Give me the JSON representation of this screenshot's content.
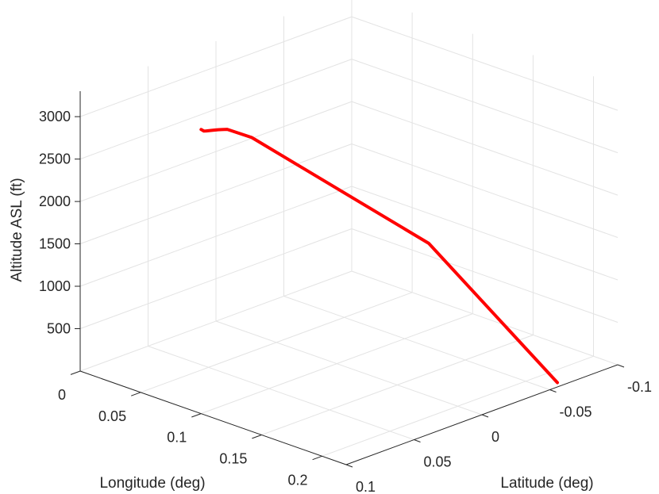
{
  "chart_data": {
    "type": "line",
    "projection": "3d",
    "xlabel": "Longitude (deg)",
    "ylabel": "Latitude (deg)",
    "zlabel": "Altitude ASL (ft)",
    "xlim": [
      0,
      0.22
    ],
    "ylim": [
      -0.1,
      0.1
    ],
    "zlim": [
      0,
      3300
    ],
    "x_ticks": [
      0,
      0.05,
      0.1,
      0.15,
      0.2
    ],
    "x_tick_labels": [
      "0",
      "0.05",
      "0.1",
      "0.15",
      "0.2"
    ],
    "y_ticks": [
      -0.1,
      -0.05,
      0,
      0.05,
      0.1
    ],
    "y_tick_labels": [
      "-0.1",
      "-0.05",
      "0",
      "0.05",
      "0.1"
    ],
    "z_ticks": [
      500,
      1000,
      1500,
      2000,
      2500,
      3000
    ],
    "z_tick_labels": [
      "500",
      "1000",
      "1500",
      "2000",
      "2500",
      "3000"
    ],
    "grid": true,
    "series": [
      {
        "color": "#ff0000",
        "x": [
          0.1,
          0.1,
          0.101,
          0.103,
          0.105,
          0.106,
          0.107,
          0.116,
          0.176,
          0.215
        ],
        "y": [
          0.1,
          0.098,
          0.097,
          0.094,
          0.092,
          0.09,
          0.087,
          0.077,
          0.0,
          -0.06
        ],
        "z": [
          3350,
          3320,
          3320,
          3320,
          3325,
          3320,
          3310,
          3200,
          1800,
          0
        ]
      }
    ]
  }
}
